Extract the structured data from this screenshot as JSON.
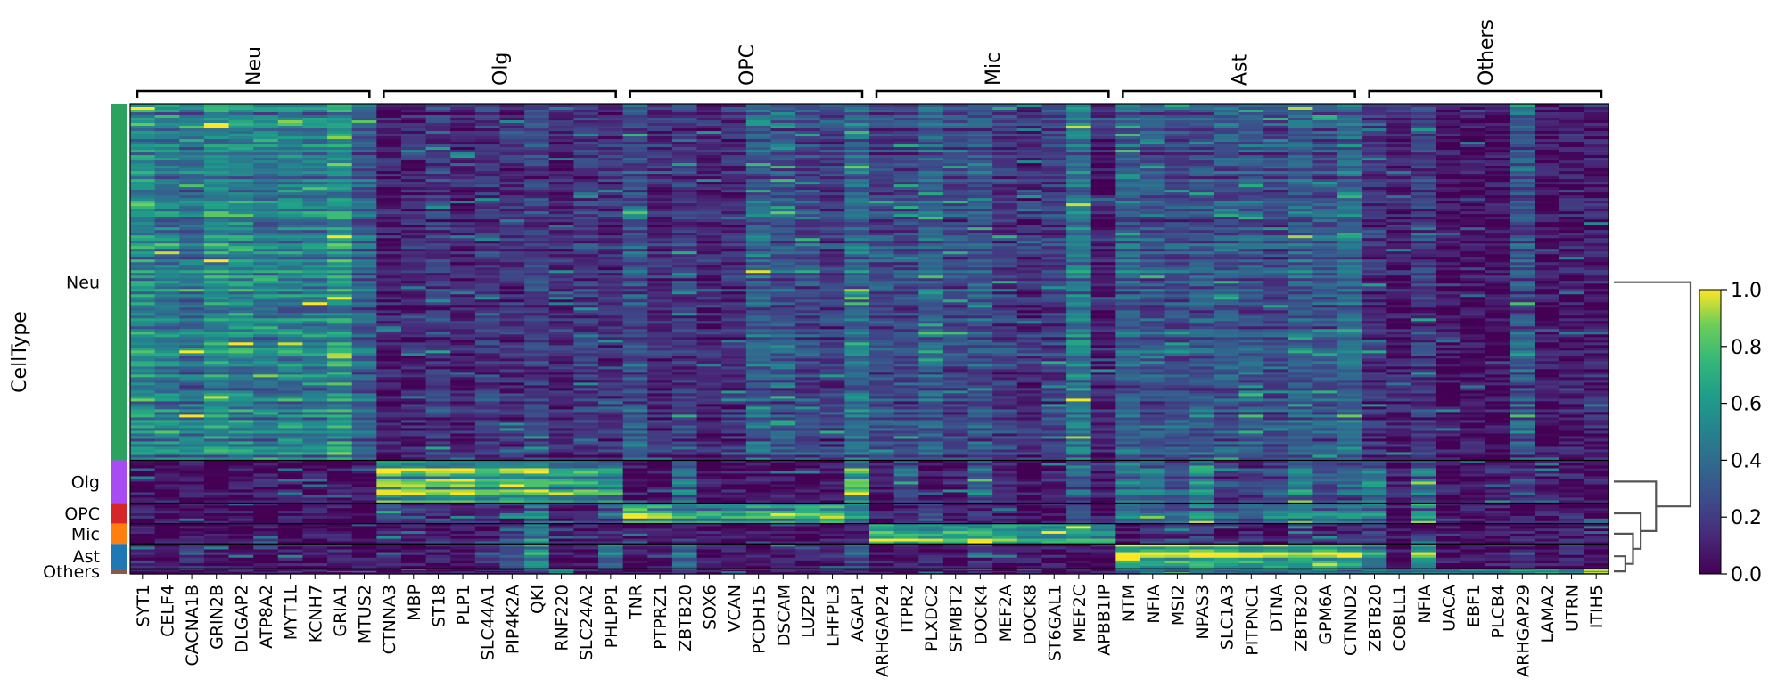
{
  "chart_data": {
    "type": "heatmap",
    "ylabel": "CellType",
    "colorbar": {
      "colormap": "viridis",
      "range": [
        0,
        1
      ],
      "ticks": [
        "0.0",
        "0.2",
        "0.4",
        "0.6",
        "0.8",
        "1.0"
      ]
    },
    "gene_groups": [
      {
        "name": "Neu",
        "genes": [
          "SYT1",
          "CELF4",
          "CACNA1B",
          "GRIN2B",
          "DLGAP2",
          "ATP8A2",
          "MYT1L",
          "KCNH7",
          "GRIA1",
          "MTUS2"
        ]
      },
      {
        "name": "Olg",
        "genes": [
          "CTNNA3",
          "MBP",
          "ST18",
          "PLP1",
          "SLC44A1",
          "PIP4K2A",
          "QKI",
          "RNF220",
          "SLC24A2",
          "PHLPP1"
        ]
      },
      {
        "name": "OPC",
        "genes": [
          "TNR",
          "PTPRZ1",
          "ZBTB20",
          "SOX6",
          "VCAN",
          "PCDH15",
          "DSCAM",
          "LUZP2",
          "LHFPL3",
          "AGAP1"
        ]
      },
      {
        "name": "Mic",
        "genes": [
          "ARHGAP24",
          "ITPR2",
          "PLXDC2",
          "SFMBT2",
          "DOCK4",
          "MEF2A",
          "DOCK8",
          "ST6GAL1",
          "MEF2C",
          "APBB1IP"
        ]
      },
      {
        "name": "Ast",
        "genes": [
          "NTM",
          "NFIA",
          "MSI2",
          "NPAS3",
          "SLC1A3",
          "PITPNC1",
          "DTNA",
          "ZBTB20",
          "GPM6A",
          "CTNND2"
        ]
      },
      {
        "name": "Others",
        "genes": [
          "ZBTB20",
          "COBLL1",
          "NFIA",
          "UACA",
          "EBF1",
          "PLCB4",
          "ARHGAP29",
          "LAMA2",
          "UTRN",
          "ITIH5"
        ]
      }
    ],
    "cell_types": [
      {
        "name": "Neu",
        "color": "#2ca25f",
        "fraction": 0.758
      },
      {
        "name": "Olg",
        "color": "#a64cf2",
        "fraction": 0.091
      },
      {
        "name": "OPC",
        "color": "#d62728",
        "fraction": 0.044
      },
      {
        "name": "Mic",
        "color": "#ff7f0e",
        "fraction": 0.043
      },
      {
        "name": "Ast",
        "color": "#1f77b4",
        "fraction": 0.053
      },
      {
        "name": "Others",
        "color": "#8c564b",
        "fraction": 0.011
      }
    ],
    "mean_expression": [
      [
        0.55,
        0.48,
        0.42,
        0.55,
        0.52,
        0.46,
        0.5,
        0.48,
        0.58,
        0.35,
        0.1,
        0.12,
        0.2,
        0.1,
        0.18,
        0.15,
        0.22,
        0.12,
        0.18,
        0.15,
        0.3,
        0.15,
        0.2,
        0.12,
        0.15,
        0.35,
        0.3,
        0.25,
        0.2,
        0.4,
        0.25,
        0.25,
        0.35,
        0.25,
        0.3,
        0.2,
        0.15,
        0.2,
        0.45,
        0.1,
        0.35,
        0.3,
        0.28,
        0.3,
        0.3,
        0.3,
        0.25,
        0.35,
        0.3,
        0.4,
        0.15,
        0.1,
        0.2,
        0.05,
        0.05,
        0.05,
        0.3,
        0.05,
        0.08,
        0.1
      ],
      [
        0.05,
        0.05,
        0.05,
        0.05,
        0.05,
        0.05,
        0.05,
        0.05,
        0.05,
        0.05,
        0.75,
        0.7,
        0.72,
        0.75,
        0.68,
        0.65,
        0.7,
        0.62,
        0.6,
        0.55,
        0.05,
        0.05,
        0.4,
        0.05,
        0.05,
        0.05,
        0.05,
        0.05,
        0.05,
        0.65,
        0.1,
        0.3,
        0.1,
        0.1,
        0.35,
        0.1,
        0.05,
        0.1,
        0.3,
        0.05,
        0.45,
        0.4,
        0.3,
        0.5,
        0.2,
        0.2,
        0.3,
        0.45,
        0.25,
        0.35,
        0.45,
        0.1,
        0.4,
        0.05,
        0.05,
        0.1,
        0.2,
        0.05,
        0.1,
        0.05
      ],
      [
        0.05,
        0.05,
        0.05,
        0.05,
        0.05,
        0.05,
        0.05,
        0.05,
        0.05,
        0.05,
        0.2,
        0.1,
        0.1,
        0.1,
        0.2,
        0.15,
        0.45,
        0.1,
        0.1,
        0.35,
        0.72,
        0.7,
        0.55,
        0.6,
        0.55,
        0.68,
        0.6,
        0.65,
        0.68,
        0.5,
        0.05,
        0.1,
        0.2,
        0.05,
        0.1,
        0.05,
        0.05,
        0.05,
        0.25,
        0.05,
        0.45,
        0.4,
        0.35,
        0.5,
        0.35,
        0.35,
        0.4,
        0.5,
        0.45,
        0.5,
        0.5,
        0.05,
        0.45,
        0.05,
        0.05,
        0.1,
        0.1,
        0.05,
        0.1,
        0.05
      ],
      [
        0.05,
        0.05,
        0.05,
        0.05,
        0.05,
        0.05,
        0.05,
        0.05,
        0.05,
        0.05,
        0.1,
        0.05,
        0.05,
        0.05,
        0.1,
        0.2,
        0.5,
        0.05,
        0.05,
        0.1,
        0.05,
        0.05,
        0.2,
        0.05,
        0.05,
        0.05,
        0.05,
        0.05,
        0.05,
        0.1,
        0.75,
        0.72,
        0.7,
        0.7,
        0.72,
        0.68,
        0.65,
        0.62,
        0.7,
        0.58,
        0.05,
        0.2,
        0.2,
        0.2,
        0.05,
        0.1,
        0.05,
        0.2,
        0.1,
        0.1,
        0.2,
        0.05,
        0.15,
        0.05,
        0.05,
        0.05,
        0.15,
        0.05,
        0.1,
        0.05
      ],
      [
        0.05,
        0.05,
        0.2,
        0.1,
        0.05,
        0.05,
        0.05,
        0.05,
        0.1,
        0.05,
        0.1,
        0.05,
        0.05,
        0.05,
        0.2,
        0.25,
        0.55,
        0.1,
        0.1,
        0.45,
        0.05,
        0.05,
        0.45,
        0.05,
        0.05,
        0.05,
        0.1,
        0.05,
        0.1,
        0.3,
        0.05,
        0.1,
        0.1,
        0.05,
        0.2,
        0.05,
        0.05,
        0.05,
        0.05,
        0.05,
        0.8,
        0.78,
        0.8,
        0.85,
        0.8,
        0.75,
        0.78,
        0.7,
        0.82,
        0.78,
        0.6,
        0.05,
        0.7,
        0.05,
        0.05,
        0.1,
        0.15,
        0.05,
        0.1,
        0.05
      ],
      [
        0.05,
        0.05,
        0.05,
        0.05,
        0.05,
        0.05,
        0.05,
        0.05,
        0.05,
        0.05,
        0.05,
        0.05,
        0.05,
        0.05,
        0.05,
        0.05,
        0.2,
        0.5,
        0.05,
        0.1,
        0.05,
        0.05,
        0.2,
        0.05,
        0.05,
        0.05,
        0.05,
        0.05,
        0.05,
        0.05,
        0.05,
        0.05,
        0.05,
        0.05,
        0.05,
        0.05,
        0.05,
        0.05,
        0.05,
        0.05,
        0.3,
        0.3,
        0.3,
        0.35,
        0.3,
        0.3,
        0.3,
        0.3,
        0.35,
        0.3,
        0.4,
        0.3,
        0.4,
        0.35,
        0.4,
        0.4,
        0.4,
        0.5,
        0.4,
        0.7
      ]
    ],
    "dendrogram": {
      "leaves": [
        "Neu",
        "Olg",
        "OPC",
        "Mic",
        "Ast",
        "Others"
      ],
      "merges": [
        {
          "a": "Ast",
          "b": "Others",
          "height": 0.15
        },
        {
          "a": "Mic",
          "b": "Ast+Others",
          "height": 0.25
        },
        {
          "a": "OPC",
          "b": "Mic+Ast+Others",
          "height": 0.35
        },
        {
          "a": "Olg",
          "b": "OPC+Mic+Ast+Others",
          "height": 0.55
        },
        {
          "a": "Neu",
          "b": "rest",
          "height": 1.0
        }
      ]
    }
  }
}
